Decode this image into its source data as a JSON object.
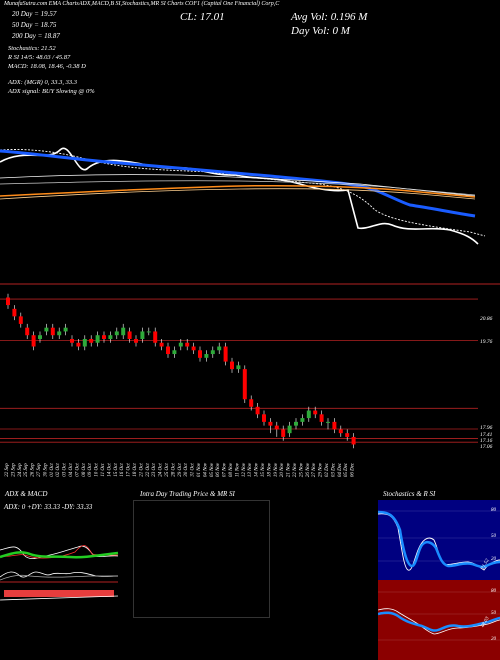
{
  "header": {
    "top_line": "MunafaSutra.com EMA ChartsADX,MACD,B SI,Stochastics,MR SI Charts COF1 (Capital One Financial) Corp,C",
    "ema20": "20 Day = 19.57",
    "ema50": "50 Day = 18.75",
    "ema200": "200 Day = 18.87",
    "close": "CL: 17.01",
    "avg_vol": "Avg Vol: 0.196  M",
    "day_vol": "Day Vol: 0  M",
    "stochastics": "Stochastics: 21.52",
    "rsi": "R          SI 14/5: 48.03 / 45.87",
    "macd": "MACD: 18.08, 18.46, -0.38  D",
    "adx": "ADX:                        (MGR) 0, 33.3, 33.3",
    "adx_signal": "ADX signal:                        BUY Slowing @ 0%"
  },
  "price_labels": {
    "p1": "20.86",
    "p2": "19.76",
    "p3": "17.96",
    "p4": "17.41",
    "p5": "17.16",
    "p6": "17.06"
  },
  "bottom_panels": {
    "adx_title": "ADX  & MACD",
    "adx_readout": "ADX: 0  +DY: 33.33  -DY: 33.33",
    "intraday_title": "Intra Day Trading Price  & MR                    SI",
    "stoch_title": "Stochastics & R                    SI",
    "stoch_ticks": [
      "80",
      "50",
      "20"
    ],
    "rsi_ticks": [
      "80",
      "50",
      "20"
    ],
    "stoch_value": "21.52",
    "rsi_value": "48.03"
  },
  "colors": {
    "background": "#000000",
    "bull": "#2eaa3a",
    "bear": "#ff0000",
    "ema_blue": "#1a5cff",
    "ema_orange": "#ff8c1a",
    "divider": "#b22222",
    "stoch_bg": "#000080",
    "rsi_bg": "#8b0000"
  },
  "chart_data": {
    "type": "candlestick",
    "title": "EMA Charts COF1",
    "dates": [
      "22 Sep",
      "23 Sep",
      "24 Sep",
      "25 Sep",
      "26 Sep",
      "27 Sep",
      "30 Sep",
      "01 Oct",
      "02 Oct",
      "03 Oct",
      "04 Oct",
      "07 Oct",
      "08 Oct",
      "09 Oct",
      "10 Oct",
      "11 Oct",
      "14 Oct",
      "15 Oct",
      "16 Oct",
      "17 Oct",
      "18 Oct",
      "21 Oct",
      "22 Oct",
      "23 Oct",
      "24 Oct",
      "25 Oct",
      "28 Oct",
      "29 Oct",
      "30 Oct",
      "31 Oct",
      "01 Nov",
      "04 Nov",
      "05 Nov",
      "06 Nov",
      "07 Nov",
      "08 Nov",
      "11 Nov",
      "12 Nov",
      "13 Nov",
      "14 Nov",
      "15 Nov",
      "18 Nov",
      "19 Nov",
      "20 Nov",
      "21 Nov",
      "22 Nov",
      "25 Nov",
      "26 Nov",
      "27 Nov",
      "29 Nov",
      "02 Dec",
      "03 Dec",
      "04 Dec",
      "05 Dec",
      "06 Dec"
    ],
    "open": [
      20.9,
      20.6,
      20.4,
      20.1,
      19.9,
      19.8,
      20.0,
      20.1,
      19.9,
      20.0,
      19.8,
      19.7,
      19.6,
      19.8,
      19.7,
      19.9,
      19.8,
      19.9,
      19.9,
      20.0,
      19.8,
      19.8,
      20.0,
      20.0,
      19.7,
      19.6,
      19.4,
      19.6,
      19.7,
      19.6,
      19.5,
      19.3,
      19.4,
      19.5,
      19.6,
      19.2,
      19.0,
      19.0,
      18.2,
      18.0,
      17.8,
      17.6,
      17.5,
      17.4,
      17.3,
      17.5,
      17.6,
      17.7,
      17.9,
      17.8,
      17.6,
      17.6,
      17.4,
      17.3,
      17.2
    ],
    "close": [
      20.7,
      20.4,
      20.2,
      19.9,
      19.6,
      19.9,
      20.1,
      19.9,
      20.0,
      20.1,
      19.7,
      19.6,
      19.8,
      19.7,
      19.9,
      19.8,
      19.9,
      20.0,
      20.1,
      19.8,
      19.7,
      20.0,
      20.0,
      19.7,
      19.6,
      19.4,
      19.5,
      19.7,
      19.6,
      19.5,
      19.3,
      19.4,
      19.5,
      19.6,
      19.2,
      19.0,
      19.1,
      18.2,
      18.0,
      17.8,
      17.6,
      17.5,
      17.4,
      17.2,
      17.5,
      17.6,
      17.7,
      17.9,
      17.8,
      17.6,
      17.6,
      17.4,
      17.3,
      17.2,
      17.0
    ],
    "high": [
      21.0,
      20.7,
      20.5,
      20.2,
      20.0,
      20.0,
      20.2,
      20.2,
      20.1,
      20.2,
      19.9,
      19.8,
      19.9,
      19.9,
      20.0,
      20.0,
      20.0,
      20.1,
      20.2,
      20.1,
      19.9,
      20.1,
      20.1,
      20.1,
      19.8,
      19.7,
      19.6,
      19.8,
      19.8,
      19.7,
      19.6,
      19.5,
      19.6,
      19.7,
      19.7,
      19.3,
      19.2,
      19.1,
      18.3,
      18.1,
      17.9,
      17.7,
      17.6,
      17.5,
      17.6,
      17.7,
      17.8,
      18.0,
      18.0,
      17.9,
      17.7,
      17.7,
      17.5,
      17.4,
      17.3
    ],
    "low": [
      20.6,
      20.3,
      20.1,
      19.8,
      19.5,
      19.7,
      19.9,
      19.8,
      19.8,
      19.9,
      19.6,
      19.5,
      19.5,
      19.6,
      19.6,
      19.7,
      19.7,
      19.8,
      19.8,
      19.7,
      19.6,
      19.7,
      19.9,
      19.6,
      19.5,
      19.3,
      19.3,
      19.5,
      19.5,
      19.4,
      19.2,
      19.2,
      19.3,
      19.4,
      19.1,
      18.9,
      18.9,
      18.1,
      17.9,
      17.7,
      17.5,
      17.3,
      17.2,
      17.1,
      17.2,
      17.4,
      17.5,
      17.6,
      17.7,
      17.5,
      17.4,
      17.3,
      17.2,
      17.1,
      16.9
    ],
    "y_ticks": [
      20.86,
      19.76,
      17.96,
      17.41,
      17.16,
      17.06
    ],
    "ylim": [
      16.8,
      21.1
    ],
    "series": []
  }
}
